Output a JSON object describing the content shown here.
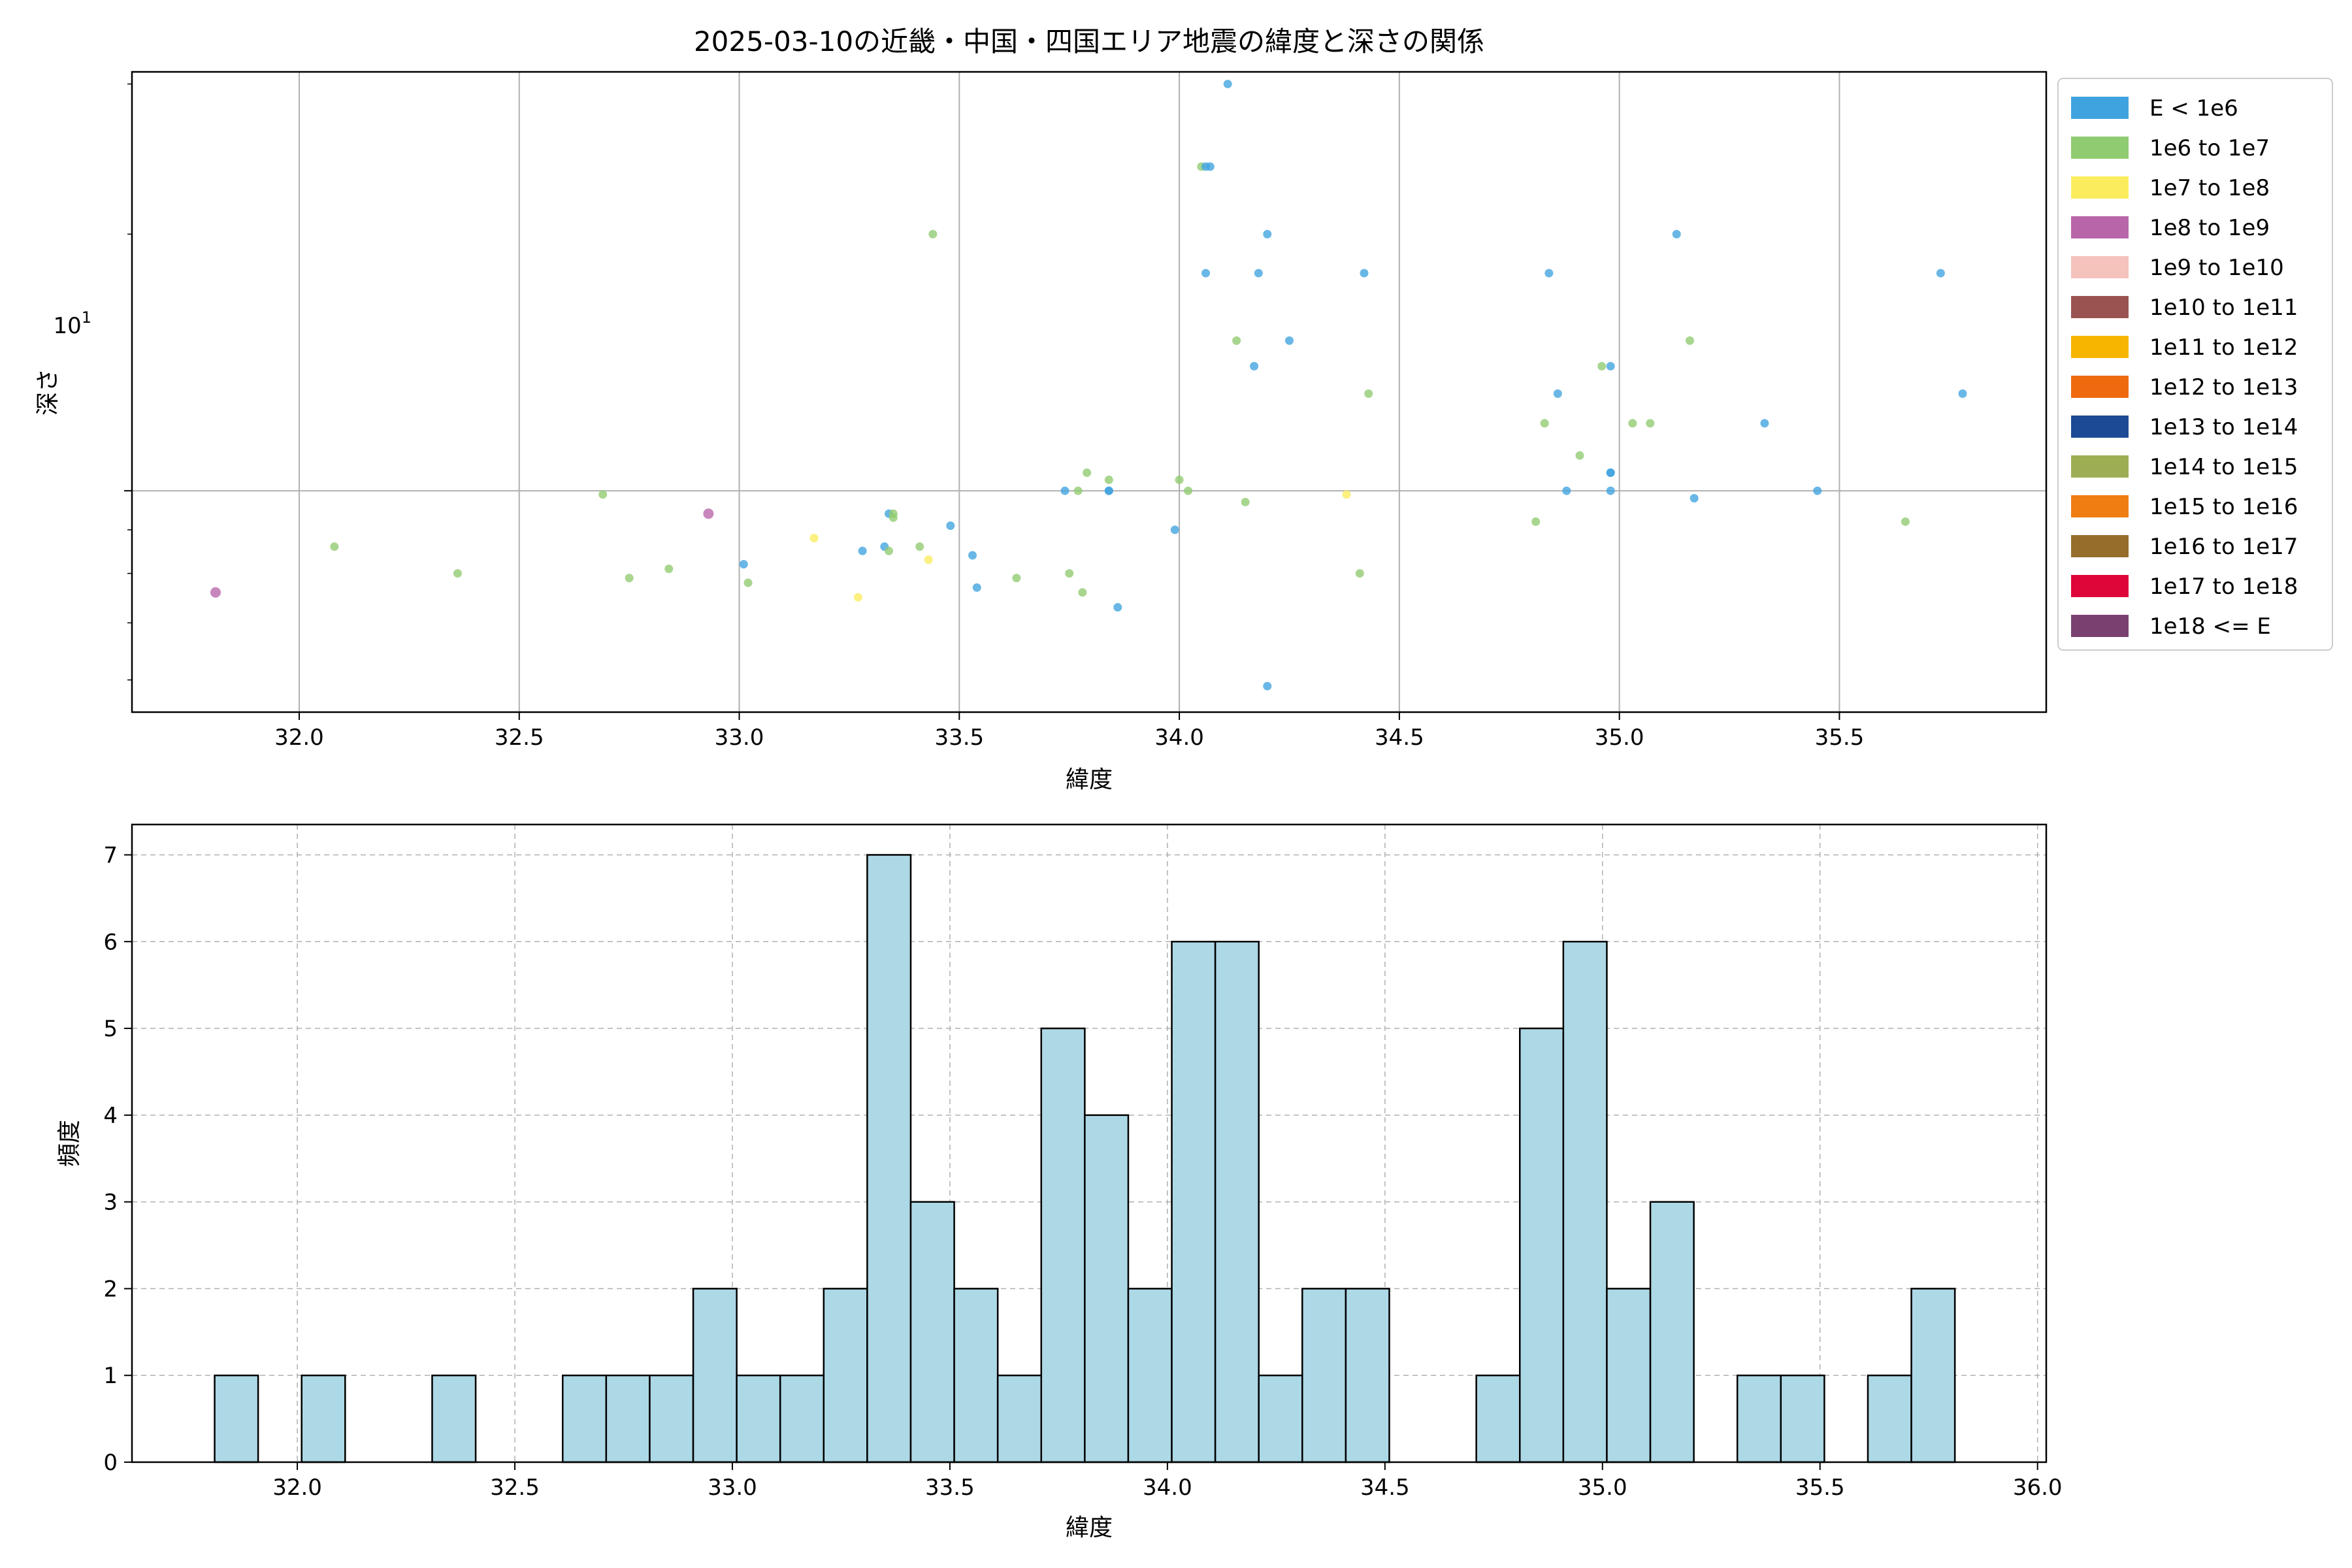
{
  "scatter": {
    "title": "2025-03-10の近畿・中国・四国エリア地震の緯度と深さの関係",
    "xlabel": "緯度",
    "ylabel": "深さ",
    "xlim": [
      31.62,
      35.97
    ],
    "ylim_log": [
      5.5,
      31.0
    ],
    "y_scale": "log",
    "x_ticks": [
      32.0,
      32.5,
      33.0,
      33.5,
      34.0,
      34.5,
      35.0,
      35.5
    ],
    "x_tick_labels": [
      "32.0",
      "32.5",
      "33.0",
      "33.5",
      "34.0",
      "34.5",
      "35.0",
      "35.5"
    ],
    "y_major_tick": 10,
    "y_major_label_base": "10",
    "y_major_label_exp": "1",
    "y_minor_ticks": [
      6,
      7,
      8,
      9,
      20,
      30
    ],
    "grid": true,
    "legend_placement": "outside-right",
    "legend": [
      {
        "label": "E < 1e6",
        "color": "#3fa3df"
      },
      {
        "label": "1e6 to 1e7",
        "color": "#8fcb70"
      },
      {
        "label": "1e7 to 1e8",
        "color": "#fbec5d"
      },
      {
        "label": "1e8 to 1e9",
        "color": "#b865a9"
      },
      {
        "label": "1e9 to 1e10",
        "color": "#f5c2bc"
      },
      {
        "label": "1e10 to 1e11",
        "color": "#9a5350"
      },
      {
        "label": "1e11 to 1e12",
        "color": "#f7b500"
      },
      {
        "label": "1e12 to 1e13",
        "color": "#ef6a0f"
      },
      {
        "label": "1e13 to 1e14",
        "color": "#1d4a94"
      },
      {
        "label": "1e14 to 1e15",
        "color": "#9dad54"
      },
      {
        "label": "1e15 to 1e16",
        "color": "#ef7d12"
      },
      {
        "label": "1e16 to 1e17",
        "color": "#976d2c"
      },
      {
        "label": "1e17 to 1e18",
        "color": "#de0538"
      },
      {
        "label": "1e18 <= E",
        "color": "#7a4170"
      }
    ],
    "point_color_by_class": {
      "0": "#3fa3df",
      "1": "#8fcb70",
      "2": "#fbec5d",
      "3": "#b865a9"
    }
  },
  "chart_data": [
    {
      "type": "scatter",
      "title": "2025-03-10の近畿・中国・四国エリア地震の緯度と深さの関係",
      "xlabel": "緯度",
      "ylabel": "深さ",
      "points": [
        {
          "x": 31.81,
          "y": 7.6,
          "cls": 3
        },
        {
          "x": 32.08,
          "y": 8.6,
          "cls": 1
        },
        {
          "x": 32.36,
          "y": 8.0,
          "cls": 1
        },
        {
          "x": 32.69,
          "y": 9.9,
          "cls": 1
        },
        {
          "x": 32.75,
          "y": 7.9,
          "cls": 1
        },
        {
          "x": 32.84,
          "y": 8.1,
          "cls": 1
        },
        {
          "x": 32.93,
          "y": 9.4,
          "cls": 3
        },
        {
          "x": 33.01,
          "y": 8.2,
          "cls": 0
        },
        {
          "x": 33.02,
          "y": 7.8,
          "cls": 1
        },
        {
          "x": 33.17,
          "y": 8.8,
          "cls": 2
        },
        {
          "x": 33.27,
          "y": 7.5,
          "cls": 2
        },
        {
          "x": 33.28,
          "y": 8.5,
          "cls": 0
        },
        {
          "x": 33.33,
          "y": 8.6,
          "cls": 0
        },
        {
          "x": 33.34,
          "y": 8.5,
          "cls": 1
        },
        {
          "x": 33.34,
          "y": 9.4,
          "cls": 0
        },
        {
          "x": 33.35,
          "y": 9.3,
          "cls": 1
        },
        {
          "x": 33.35,
          "y": 9.4,
          "cls": 1
        },
        {
          "x": 33.41,
          "y": 8.6,
          "cls": 1
        },
        {
          "x": 33.43,
          "y": 8.3,
          "cls": 2
        },
        {
          "x": 33.44,
          "y": 20.0,
          "cls": 1
        },
        {
          "x": 33.48,
          "y": 9.1,
          "cls": 0
        },
        {
          "x": 33.53,
          "y": 8.4,
          "cls": 0
        },
        {
          "x": 33.54,
          "y": 7.7,
          "cls": 0
        },
        {
          "x": 33.63,
          "y": 7.9,
          "cls": 1
        },
        {
          "x": 33.74,
          "y": 10.0,
          "cls": 0
        },
        {
          "x": 33.75,
          "y": 8.0,
          "cls": 1
        },
        {
          "x": 33.77,
          "y": 10.0,
          "cls": 1
        },
        {
          "x": 33.78,
          "y": 7.6,
          "cls": 1
        },
        {
          "x": 33.79,
          "y": 10.5,
          "cls": 1
        },
        {
          "x": 33.84,
          "y": 10.0,
          "cls": 0
        },
        {
          "x": 33.84,
          "y": 10.0,
          "cls": 0
        },
        {
          "x": 33.84,
          "y": 10.3,
          "cls": 1
        },
        {
          "x": 33.86,
          "y": 7.3,
          "cls": 0
        },
        {
          "x": 33.99,
          "y": 9.0,
          "cls": 0
        },
        {
          "x": 34.0,
          "y": 10.3,
          "cls": 1
        },
        {
          "x": 34.02,
          "y": 10.0,
          "cls": 1
        },
        {
          "x": 34.05,
          "y": 24.0,
          "cls": 1
        },
        {
          "x": 34.06,
          "y": 24.0,
          "cls": 0
        },
        {
          "x": 34.07,
          "y": 24.0,
          "cls": 0
        },
        {
          "x": 34.06,
          "y": 18.0,
          "cls": 0
        },
        {
          "x": 34.11,
          "y": 30.0,
          "cls": 0
        },
        {
          "x": 34.13,
          "y": 15.0,
          "cls": 1
        },
        {
          "x": 34.15,
          "y": 9.7,
          "cls": 1
        },
        {
          "x": 34.17,
          "y": 14.0,
          "cls": 0
        },
        {
          "x": 34.18,
          "y": 18.0,
          "cls": 0
        },
        {
          "x": 34.2,
          "y": 20.0,
          "cls": 0
        },
        {
          "x": 34.2,
          "y": 5.9,
          "cls": 0
        },
        {
          "x": 34.25,
          "y": 15.0,
          "cls": 0
        },
        {
          "x": 34.38,
          "y": 9.9,
          "cls": 2
        },
        {
          "x": 34.41,
          "y": 8.0,
          "cls": 1
        },
        {
          "x": 34.42,
          "y": 18.0,
          "cls": 0
        },
        {
          "x": 34.43,
          "y": 13.0,
          "cls": 1
        },
        {
          "x": 34.81,
          "y": 9.2,
          "cls": 1
        },
        {
          "x": 34.83,
          "y": 12.0,
          "cls": 1
        },
        {
          "x": 34.84,
          "y": 18.0,
          "cls": 0
        },
        {
          "x": 34.86,
          "y": 13.0,
          "cls": 0
        },
        {
          "x": 34.88,
          "y": 10.0,
          "cls": 0
        },
        {
          "x": 34.91,
          "y": 11.0,
          "cls": 1
        },
        {
          "x": 34.96,
          "y": 14.0,
          "cls": 1
        },
        {
          "x": 34.98,
          "y": 14.0,
          "cls": 0
        },
        {
          "x": 34.98,
          "y": 10.5,
          "cls": 0
        },
        {
          "x": 34.98,
          "y": 10.0,
          "cls": 0
        },
        {
          "x": 34.98,
          "y": 10.5,
          "cls": 0
        },
        {
          "x": 35.03,
          "y": 12.0,
          "cls": 1
        },
        {
          "x": 35.07,
          "y": 12.0,
          "cls": 1
        },
        {
          "x": 35.13,
          "y": 20.0,
          "cls": 0
        },
        {
          "x": 35.16,
          "y": 15.0,
          "cls": 1
        },
        {
          "x": 35.17,
          "y": 9.8,
          "cls": 0
        },
        {
          "x": 35.33,
          "y": 12.0,
          "cls": 0
        },
        {
          "x": 35.45,
          "y": 10.0,
          "cls": 0
        },
        {
          "x": 35.65,
          "y": 9.2,
          "cls": 1
        },
        {
          "x": 35.73,
          "y": 18.0,
          "cls": 0
        },
        {
          "x": 35.78,
          "y": 13.0,
          "cls": 0
        }
      ]
    },
    {
      "type": "bar",
      "title": "",
      "xlabel": "緯度",
      "ylabel": "頻度",
      "xlim": [
        31.62,
        36.02
      ],
      "ylim": [
        0,
        7.35
      ],
      "bin_width": 0.1,
      "bar_color": "#add8e6",
      "edge_color": "#000000",
      "x_ticks": [
        32.0,
        32.5,
        33.0,
        33.5,
        34.0,
        34.5,
        35.0,
        35.5,
        36.0
      ],
      "x_tick_labels": [
        "32.0",
        "32.5",
        "33.0",
        "33.5",
        "34.0",
        "34.5",
        "35.0",
        "35.5",
        "36.0"
      ],
      "y_ticks": [
        0,
        1,
        2,
        3,
        4,
        5,
        6,
        7
      ],
      "y_tick_labels": [
        "0",
        "1",
        "2",
        "3",
        "4",
        "5",
        "6",
        "7"
      ],
      "bins": [
        {
          "x": 31.81,
          "v": 1
        },
        {
          "x": 32.01,
          "v": 1
        },
        {
          "x": 32.31,
          "v": 1
        },
        {
          "x": 32.61,
          "v": 1
        },
        {
          "x": 32.71,
          "v": 1
        },
        {
          "x": 32.81,
          "v": 1
        },
        {
          "x": 32.91,
          "v": 2
        },
        {
          "x": 33.01,
          "v": 1
        },
        {
          "x": 33.11,
          "v": 1
        },
        {
          "x": 33.21,
          "v": 2
        },
        {
          "x": 33.31,
          "v": 7
        },
        {
          "x": 33.41,
          "v": 3
        },
        {
          "x": 33.51,
          "v": 2
        },
        {
          "x": 33.61,
          "v": 1
        },
        {
          "x": 33.71,
          "v": 5
        },
        {
          "x": 33.81,
          "v": 4
        },
        {
          "x": 33.91,
          "v": 2
        },
        {
          "x": 34.01,
          "v": 6
        },
        {
          "x": 34.11,
          "v": 6
        },
        {
          "x": 34.21,
          "v": 1
        },
        {
          "x": 34.31,
          "v": 2
        },
        {
          "x": 34.41,
          "v": 2
        },
        {
          "x": 34.71,
          "v": 1
        },
        {
          "x": 34.81,
          "v": 5
        },
        {
          "x": 34.91,
          "v": 6
        },
        {
          "x": 35.01,
          "v": 2
        },
        {
          "x": 35.11,
          "v": 3
        },
        {
          "x": 35.31,
          "v": 1
        },
        {
          "x": 35.41,
          "v": 1
        },
        {
          "x": 35.61,
          "v": 1
        },
        {
          "x": 35.71,
          "v": 2
        }
      ]
    }
  ]
}
